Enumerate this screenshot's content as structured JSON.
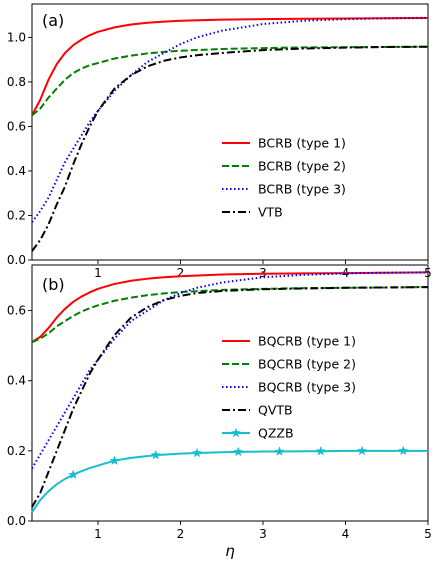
{
  "chart_data": [
    {
      "type": "line",
      "panel_label": "(a)",
      "xlim": [
        0.2,
        5
      ],
      "ylim": [
        0,
        1.15
      ],
      "xticks": [
        1,
        2,
        3,
        4,
        5
      ],
      "yticks": [
        0.0,
        0.2,
        0.4,
        0.6,
        0.8,
        1.0
      ],
      "ytick_labels": [
        "0.0",
        "0.2",
        "0.4",
        "0.6",
        "0.8",
        "1.0"
      ],
      "legend": "center-right",
      "grid": false,
      "series": [
        {
          "name": "BCRB (type 1)",
          "color": "#ff0000",
          "style": "solid",
          "x": [
            0.2,
            0.3,
            0.4,
            0.5,
            0.6,
            0.7,
            0.8,
            0.9,
            1.0,
            1.2,
            1.4,
            1.6,
            1.8,
            2.0,
            2.5,
            3.0,
            3.5,
            4.0,
            4.5,
            5.0
          ],
          "y": [
            0.65,
            0.72,
            0.81,
            0.88,
            0.93,
            0.965,
            0.99,
            1.01,
            1.025,
            1.045,
            1.058,
            1.066,
            1.071,
            1.075,
            1.08,
            1.082,
            1.084,
            1.085,
            1.086,
            1.087
          ]
        },
        {
          "name": "BCRB (type 2)",
          "color": "#008000",
          "style": "dashed",
          "x": [
            0.2,
            0.3,
            0.4,
            0.5,
            0.6,
            0.7,
            0.8,
            0.9,
            1.0,
            1.2,
            1.4,
            1.6,
            1.8,
            2.0,
            2.5,
            3.0,
            3.5,
            4.0,
            4.5,
            5.0
          ],
          "y": [
            0.65,
            0.68,
            0.73,
            0.77,
            0.81,
            0.84,
            0.86,
            0.875,
            0.885,
            0.905,
            0.918,
            0.928,
            0.935,
            0.94,
            0.948,
            0.952,
            0.955,
            0.956,
            0.957,
            0.958
          ]
        },
        {
          "name": "BCRB (type 3)",
          "color": "#0000ff",
          "style": "dotted",
          "x": [
            0.2,
            0.3,
            0.4,
            0.5,
            0.6,
            0.7,
            0.8,
            0.9,
            1.0,
            1.2,
            1.4,
            1.6,
            1.8,
            2.0,
            2.2,
            2.5,
            3.0,
            3.5,
            4.0,
            4.5,
            5.0
          ],
          "y": [
            0.17,
            0.22,
            0.28,
            0.36,
            0.44,
            0.5,
            0.56,
            0.62,
            0.67,
            0.76,
            0.83,
            0.89,
            0.93,
            0.97,
            1.0,
            1.03,
            1.06,
            1.075,
            1.082,
            1.086,
            1.088
          ]
        },
        {
          "name": "VTB",
          "color": "#000000",
          "style": "dashdot",
          "x": [
            0.2,
            0.3,
            0.4,
            0.5,
            0.6,
            0.7,
            0.8,
            0.9,
            1.0,
            1.2,
            1.4,
            1.6,
            1.8,
            2.0,
            2.2,
            2.5,
            3.0,
            3.5,
            4.0,
            4.5,
            5.0
          ],
          "y": [
            0.04,
            0.09,
            0.16,
            0.25,
            0.33,
            0.43,
            0.52,
            0.6,
            0.67,
            0.77,
            0.83,
            0.87,
            0.895,
            0.91,
            0.92,
            0.93,
            0.943,
            0.95,
            0.954,
            0.957,
            0.958
          ]
        }
      ]
    },
    {
      "type": "line",
      "panel_label": "(b)",
      "xlim": [
        0.2,
        5
      ],
      "xlabel": "η",
      "ylim": [
        0,
        0.73
      ],
      "xticks": [
        1,
        2,
        3,
        4,
        5
      ],
      "yticks": [
        0.0,
        0.2,
        0.4,
        0.6
      ],
      "ytick_labels": [
        "0.0",
        "0.2",
        "0.4",
        "0.6"
      ],
      "legend": "center-right",
      "grid": false,
      "series": [
        {
          "name": "BQCRB (type 1)",
          "color": "#ff0000",
          "style": "solid",
          "x": [
            0.2,
            0.3,
            0.4,
            0.5,
            0.6,
            0.7,
            0.8,
            0.9,
            1.0,
            1.2,
            1.4,
            1.6,
            1.8,
            2.0,
            2.5,
            3.0,
            3.5,
            4.0,
            4.5,
            5.0
          ],
          "y": [
            0.51,
            0.525,
            0.55,
            0.58,
            0.605,
            0.625,
            0.64,
            0.652,
            0.662,
            0.676,
            0.685,
            0.691,
            0.695,
            0.698,
            0.703,
            0.705,
            0.706,
            0.707,
            0.708,
            0.709
          ]
        },
        {
          "name": "BQCRB (type 2)",
          "color": "#008000",
          "style": "dashed",
          "x": [
            0.2,
            0.3,
            0.4,
            0.5,
            0.6,
            0.7,
            0.8,
            0.9,
            1.0,
            1.2,
            1.4,
            1.6,
            1.8,
            2.0,
            2.5,
            3.0,
            3.5,
            4.0,
            4.5,
            5.0
          ],
          "y": [
            0.51,
            0.52,
            0.535,
            0.555,
            0.57,
            0.585,
            0.597,
            0.607,
            0.615,
            0.628,
            0.637,
            0.644,
            0.649,
            0.653,
            0.659,
            0.662,
            0.664,
            0.665,
            0.666,
            0.667
          ]
        },
        {
          "name": "BQCRB (type 3)",
          "color": "#0000ff",
          "style": "dotted",
          "x": [
            0.2,
            0.3,
            0.4,
            0.5,
            0.6,
            0.7,
            0.8,
            0.9,
            1.0,
            1.2,
            1.4,
            1.6,
            1.8,
            2.0,
            2.2,
            2.5,
            3.0,
            3.5,
            4.0,
            4.5,
            5.0
          ],
          "y": [
            0.15,
            0.19,
            0.23,
            0.27,
            0.31,
            0.35,
            0.39,
            0.43,
            0.46,
            0.52,
            0.57,
            0.6,
            0.63,
            0.65,
            0.665,
            0.68,
            0.695,
            0.702,
            0.706,
            0.708,
            0.709
          ]
        },
        {
          "name": "QVTB",
          "color": "#000000",
          "style": "dashdot",
          "x": [
            0.2,
            0.3,
            0.4,
            0.5,
            0.6,
            0.7,
            0.8,
            0.9,
            1.0,
            1.2,
            1.4,
            1.6,
            1.8,
            2.0,
            2.2,
            2.5,
            3.0,
            3.5,
            4.0,
            4.5,
            5.0
          ],
          "y": [
            0.04,
            0.08,
            0.14,
            0.2,
            0.26,
            0.32,
            0.37,
            0.42,
            0.46,
            0.53,
            0.58,
            0.61,
            0.63,
            0.642,
            0.65,
            0.656,
            0.661,
            0.663,
            0.665,
            0.666,
            0.667
          ]
        },
        {
          "name": "QZZB",
          "color": "#17becf",
          "style": "solid",
          "marker": "star",
          "x": [
            0.2,
            0.3,
            0.4,
            0.5,
            0.6,
            0.7,
            0.8,
            0.9,
            1.0,
            1.2,
            1.4,
            1.7,
            2.0,
            2.2,
            2.5,
            2.7,
            3.0,
            3.2,
            3.5,
            3.7,
            4.0,
            4.2,
            4.5,
            4.7,
            5.0
          ],
          "y": [
            0.025,
            0.06,
            0.085,
            0.105,
            0.12,
            0.132,
            0.142,
            0.151,
            0.158,
            0.172,
            0.18,
            0.188,
            0.192,
            0.194,
            0.196,
            0.197,
            0.198,
            0.198,
            0.199,
            0.199,
            0.2,
            0.2,
            0.2,
            0.2,
            0.2
          ],
          "marker_x": [
            0.7,
            1.2,
            1.7,
            2.2,
            2.7,
            3.2,
            3.7,
            4.2,
            4.7
          ]
        }
      ]
    }
  ]
}
